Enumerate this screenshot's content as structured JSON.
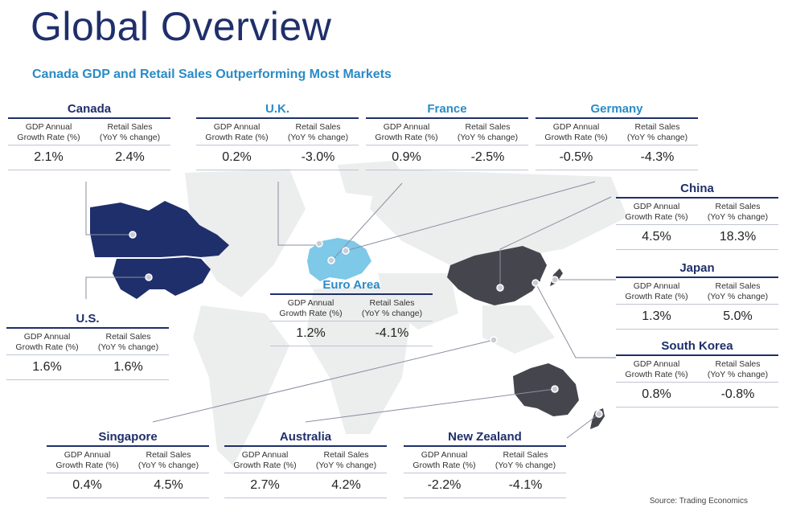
{
  "title": "Global Overview",
  "subtitle": "Canada GDP and Retail Sales Outperforming Most Markets",
  "headers": {
    "gdp_line1": "GDP Annual",
    "gdp_line2": "Growth Rate (%)",
    "retail_line1": "Retail Sales",
    "retail_line2": "(YoY % change)"
  },
  "countries": {
    "canada": {
      "name": "Canada",
      "gdp": "2.1%",
      "retail": "2.4%"
    },
    "uk": {
      "name": "U.K.",
      "gdp": "0.2%",
      "retail": "-3.0%"
    },
    "france": {
      "name": "France",
      "gdp": "0.9%",
      "retail": "-2.5%"
    },
    "germany": {
      "name": "Germany",
      "gdp": "-0.5%",
      "retail": "-4.3%"
    },
    "china": {
      "name": "China",
      "gdp": "4.5%",
      "retail": "18.3%"
    },
    "japan": {
      "name": "Japan",
      "gdp": "1.3%",
      "retail": "5.0%"
    },
    "south_korea": {
      "name": "South Korea",
      "gdp": "0.8%",
      "retail": "-0.8%"
    },
    "euro_area": {
      "name": "Euro Area",
      "gdp": "1.2%",
      "retail": "-4.1%"
    },
    "us": {
      "name": "U.S.",
      "gdp": "1.6%",
      "retail": "1.6%"
    },
    "singapore": {
      "name": "Singapore",
      "gdp": "0.4%",
      "retail": "4.5%"
    },
    "australia": {
      "name": "Australia",
      "gdp": "2.7%",
      "retail": "4.2%"
    },
    "new_zealand": {
      "name": "New Zealand",
      "gdp": "-2.2%",
      "retail": "-4.1%"
    }
  },
  "source": "Source: Trading Economics",
  "colors": {
    "navy": "#1f2f6b",
    "accent_blue": "#2a8bc6",
    "europe_light_blue": "#7ec8e8",
    "dark_grey_land": "#45464d",
    "light_grey_land": "#e9eaec"
  }
}
